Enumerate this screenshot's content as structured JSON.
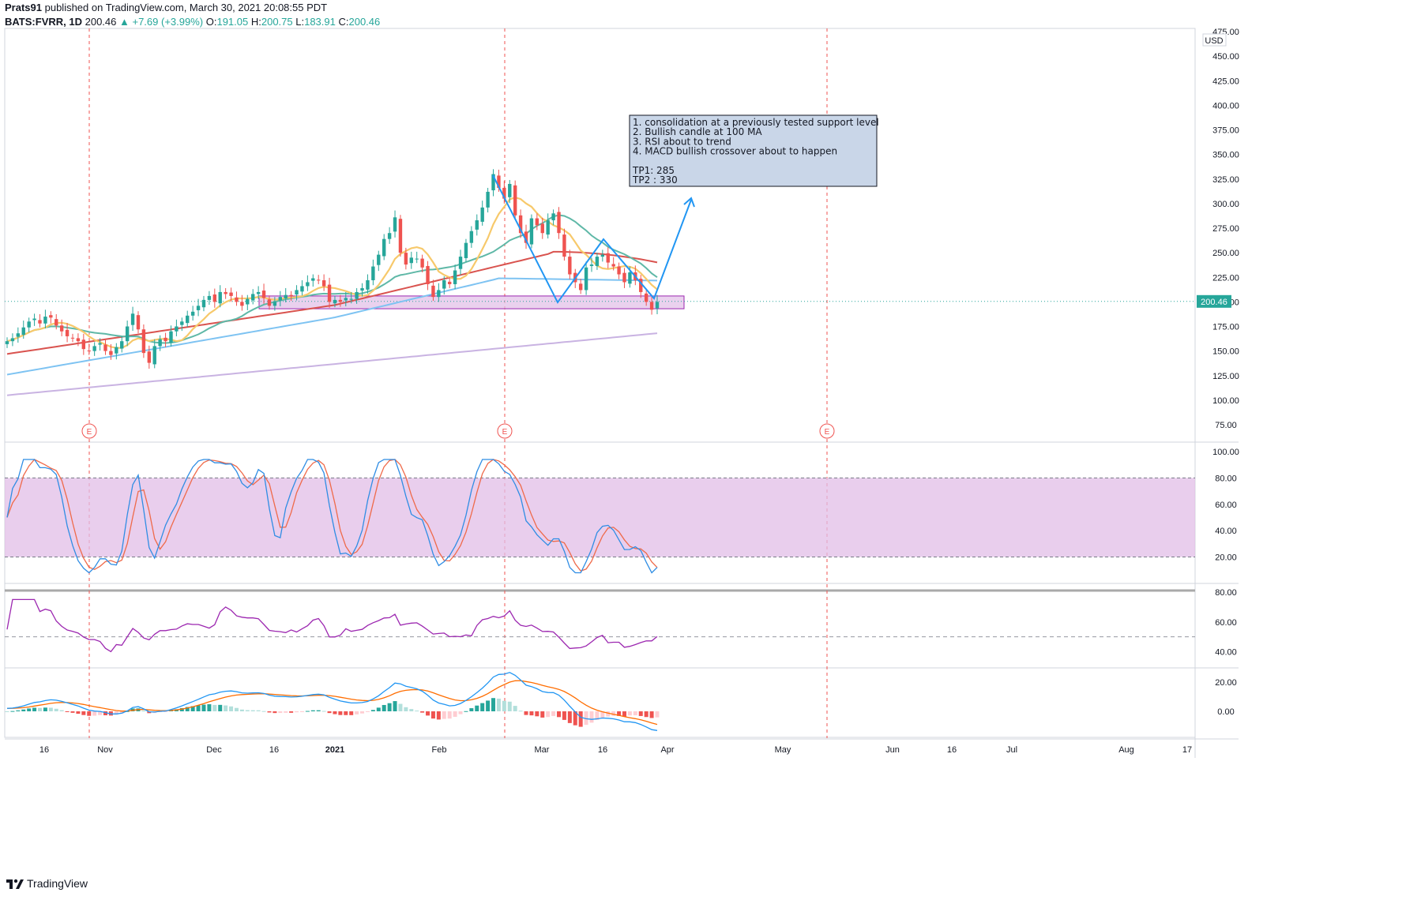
{
  "header": {
    "author": "Prats91",
    "published_text": "published on TradingView.com, March 30, 2021 20:08:55 PDT",
    "symbol": "BATS:FVRR, 1D",
    "last": "200.46",
    "change": "▲ +7.69 (+3.99%)",
    "o_label": "O:",
    "o_val": "191.05",
    "h_label": "H:",
    "h_val": "200.75",
    "l_label": "L:",
    "l_val": "183.91",
    "c_label": "C:",
    "c_val": "200.46"
  },
  "footer": {
    "brand": "TradingView"
  },
  "colors": {
    "up": "#26a69a",
    "down": "#ef5350",
    "ma_fast": "#f7c96b",
    "ma_mid": "#5fb8a7",
    "ma_slow": "#d9534f",
    "ma_100": "#7ec3f2",
    "ma_200": "#c9b3e2",
    "stoch_k": "#2f8de4",
    "stoch_d": "#ef6a4a",
    "rsi": "#9c27b0",
    "macd": "#2196f3",
    "signal": "#ff6d00",
    "zone": "#e1bee7",
    "drawing": "#2196f3"
  },
  "annotation": {
    "lines": [
      "1. consolidation at a previously tested support level",
      "2. Bullish candle at 100 MA",
      "3. RSI about to trend",
      "4. MACD bullish crossover about to happen",
      "",
      "TP1:  285",
      "TP2 : 330"
    ]
  },
  "chart_data": [
    {
      "type": "candlestick",
      "title": "BATS:FVRR, 1D",
      "currency": "USD",
      "ylim": [
        60,
        475
      ],
      "y_ticks": [
        75,
        100,
        125,
        150,
        175,
        200,
        225,
        250,
        275,
        300,
        325,
        350,
        375,
        400,
        425,
        450,
        475
      ],
      "y_tick_labels": [
        "75.00",
        "100.00",
        "125.00",
        "150.00",
        "175.00",
        "200.00",
        "225.00",
        "250.00",
        "275.00",
        "300.00",
        "325.00",
        "350.00",
        "375.00",
        "400.00",
        "425.00",
        "450.00",
        "475.00"
      ],
      "last_price_label": "200.46",
      "x_tick_labels": [
        "16",
        "Nov",
        "Dec",
        "16",
        "2021",
        "Feb",
        "Mar",
        "16",
        "Apr",
        "May",
        "Jun",
        "16",
        "Jul",
        "Aug",
        "17"
      ],
      "earnings_marker": "E",
      "closes": [
        160,
        163,
        168,
        174,
        180,
        183,
        178,
        185,
        184,
        176,
        170,
        165,
        163,
        160,
        152,
        150,
        155,
        158,
        150,
        146,
        154,
        160,
        175,
        188,
        172,
        148,
        138,
        155,
        162,
        160,
        170,
        175,
        180,
        186,
        190,
        196,
        202,
        206,
        200,
        210,
        208,
        206,
        200,
        196,
        203,
        208,
        210,
        204,
        196,
        200,
        205,
        207,
        206,
        212,
        216,
        220,
        224,
        222,
        216,
        200,
        202,
        200,
        204,
        203,
        210,
        214,
        222,
        236,
        248,
        264,
        270,
        286,
        250,
        238,
        245,
        244,
        235,
        218,
        205,
        212,
        222,
        218,
        232,
        246,
        260,
        272,
        283,
        296,
        312,
        330,
        316,
        305,
        320,
        288,
        270,
        260,
        285,
        278,
        270,
        283,
        290,
        270,
        246,
        228,
        220,
        212,
        235,
        238,
        246,
        248,
        240,
        236,
        228,
        220,
        230,
        222,
        210,
        200,
        192,
        200
      ],
      "ma_fast": "orange moving average",
      "ma_mid": "teal moving average",
      "ma_slow": "red moving average",
      "ma_100": "blue moving average",
      "ma_200": "lavender moving average",
      "support_zone": [
        193,
        206
      ],
      "tp_levels": [
        285,
        330
      ]
    },
    {
      "type": "line",
      "name": "stochastic",
      "ylim": [
        0,
        100
      ],
      "y_tick_labels": [
        "20.00",
        "40.00",
        "60.00",
        "80.00",
        "100.00"
      ],
      "band": [
        20,
        80
      ]
    },
    {
      "type": "line",
      "name": "rsi",
      "ylim": [
        25,
        80
      ],
      "y_tick_labels": [
        "40.00",
        "60.00",
        "80.00"
      ],
      "midline": 50
    },
    {
      "type": "line",
      "name": "macd",
      "y_tick_labels": [
        "0.00",
        "20.00"
      ]
    }
  ]
}
